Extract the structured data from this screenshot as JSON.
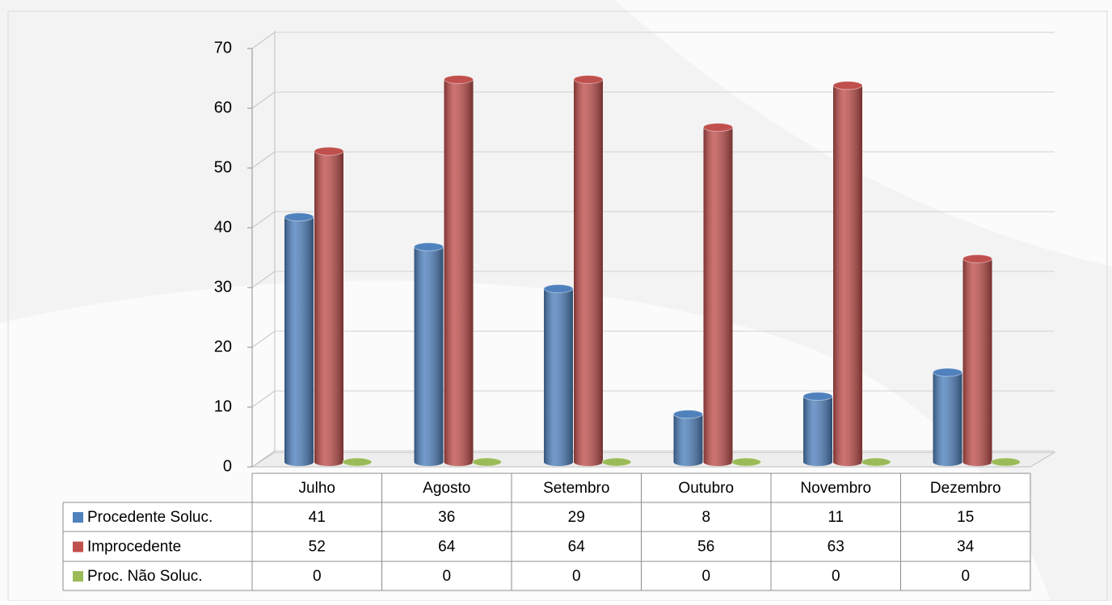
{
  "chart_data": {
    "type": "bar3d",
    "categories": [
      "Julho",
      "Agosto",
      "Setembro",
      "Outubro",
      "Novembro",
      "Dezembro"
    ],
    "series": [
      {
        "name": "Procedente Soluc.",
        "color": "#4f81bd",
        "values": [
          41,
          36,
          29,
          8,
          11,
          15
        ]
      },
      {
        "name": "Improcedente",
        "color": "#c0504d",
        "values": [
          52,
          64,
          64,
          56,
          63,
          34
        ]
      },
      {
        "name": "Proc. Não Soluc.",
        "color": "#9bbb59",
        "values": [
          0,
          0,
          0,
          0,
          0,
          0
        ]
      }
    ],
    "ylim": [
      0,
      70
    ],
    "yticks": [
      0,
      10,
      20,
      30,
      40,
      50,
      60,
      70
    ],
    "grid": true,
    "data_table": true
  }
}
